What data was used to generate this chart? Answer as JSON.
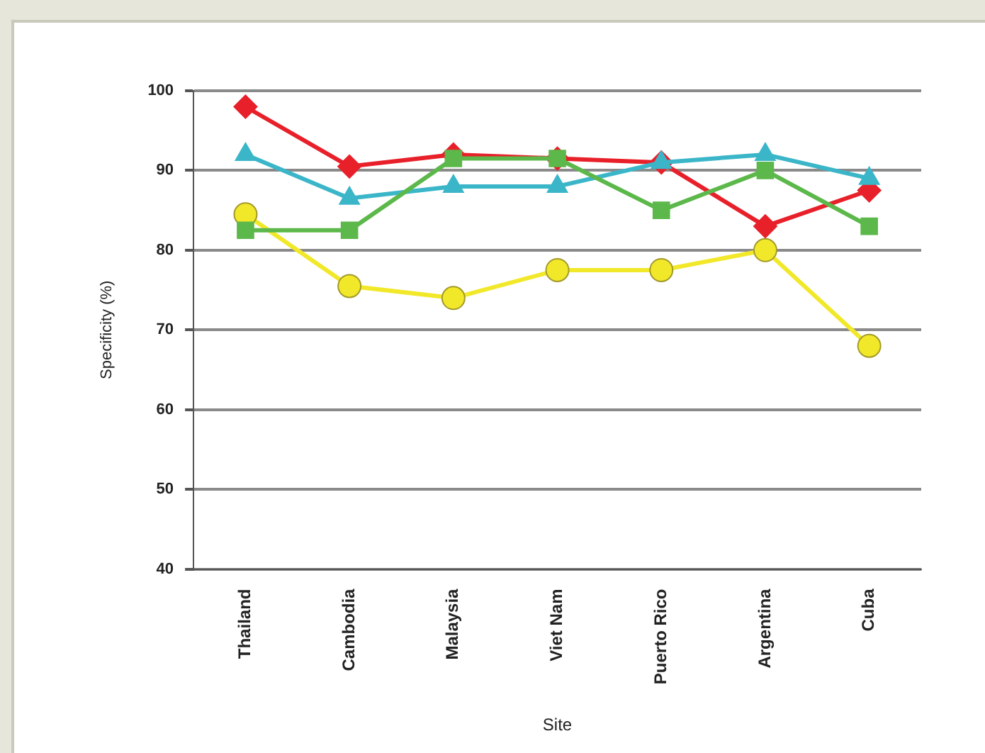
{
  "chart_data": {
    "type": "line",
    "xlabel": "Site",
    "ylabel": "Specificity (%)",
    "categories": [
      "Thailand",
      "Cambodia",
      "Malaysia",
      "Viet Nam",
      "Puerto Rico",
      "Argentina",
      "Cuba"
    ],
    "series": [
      {
        "color": "#5cb84a",
        "marker": "square",
        "values": [
          82.5,
          82.5,
          91.5,
          91.5,
          85,
          90,
          83
        ]
      },
      {
        "color": "#3bb6c9",
        "marker": "triangle",
        "values": [
          92,
          86.5,
          88,
          88,
          91,
          92,
          89
        ]
      },
      {
        "color": "#e8202a",
        "marker": "diamond",
        "values": [
          98,
          90.5,
          92,
          91.5,
          91,
          83,
          87.5
        ]
      },
      {
        "color": "#f2e82a",
        "marker": "circle",
        "values": [
          84.5,
          75.5,
          74,
          77.5,
          77.5,
          80,
          68
        ]
      }
    ],
    "ylim": [
      40,
      100
    ],
    "yticks": [
      40,
      50,
      60,
      70,
      80,
      90,
      100
    ],
    "grid": "y",
    "legend": false
  }
}
